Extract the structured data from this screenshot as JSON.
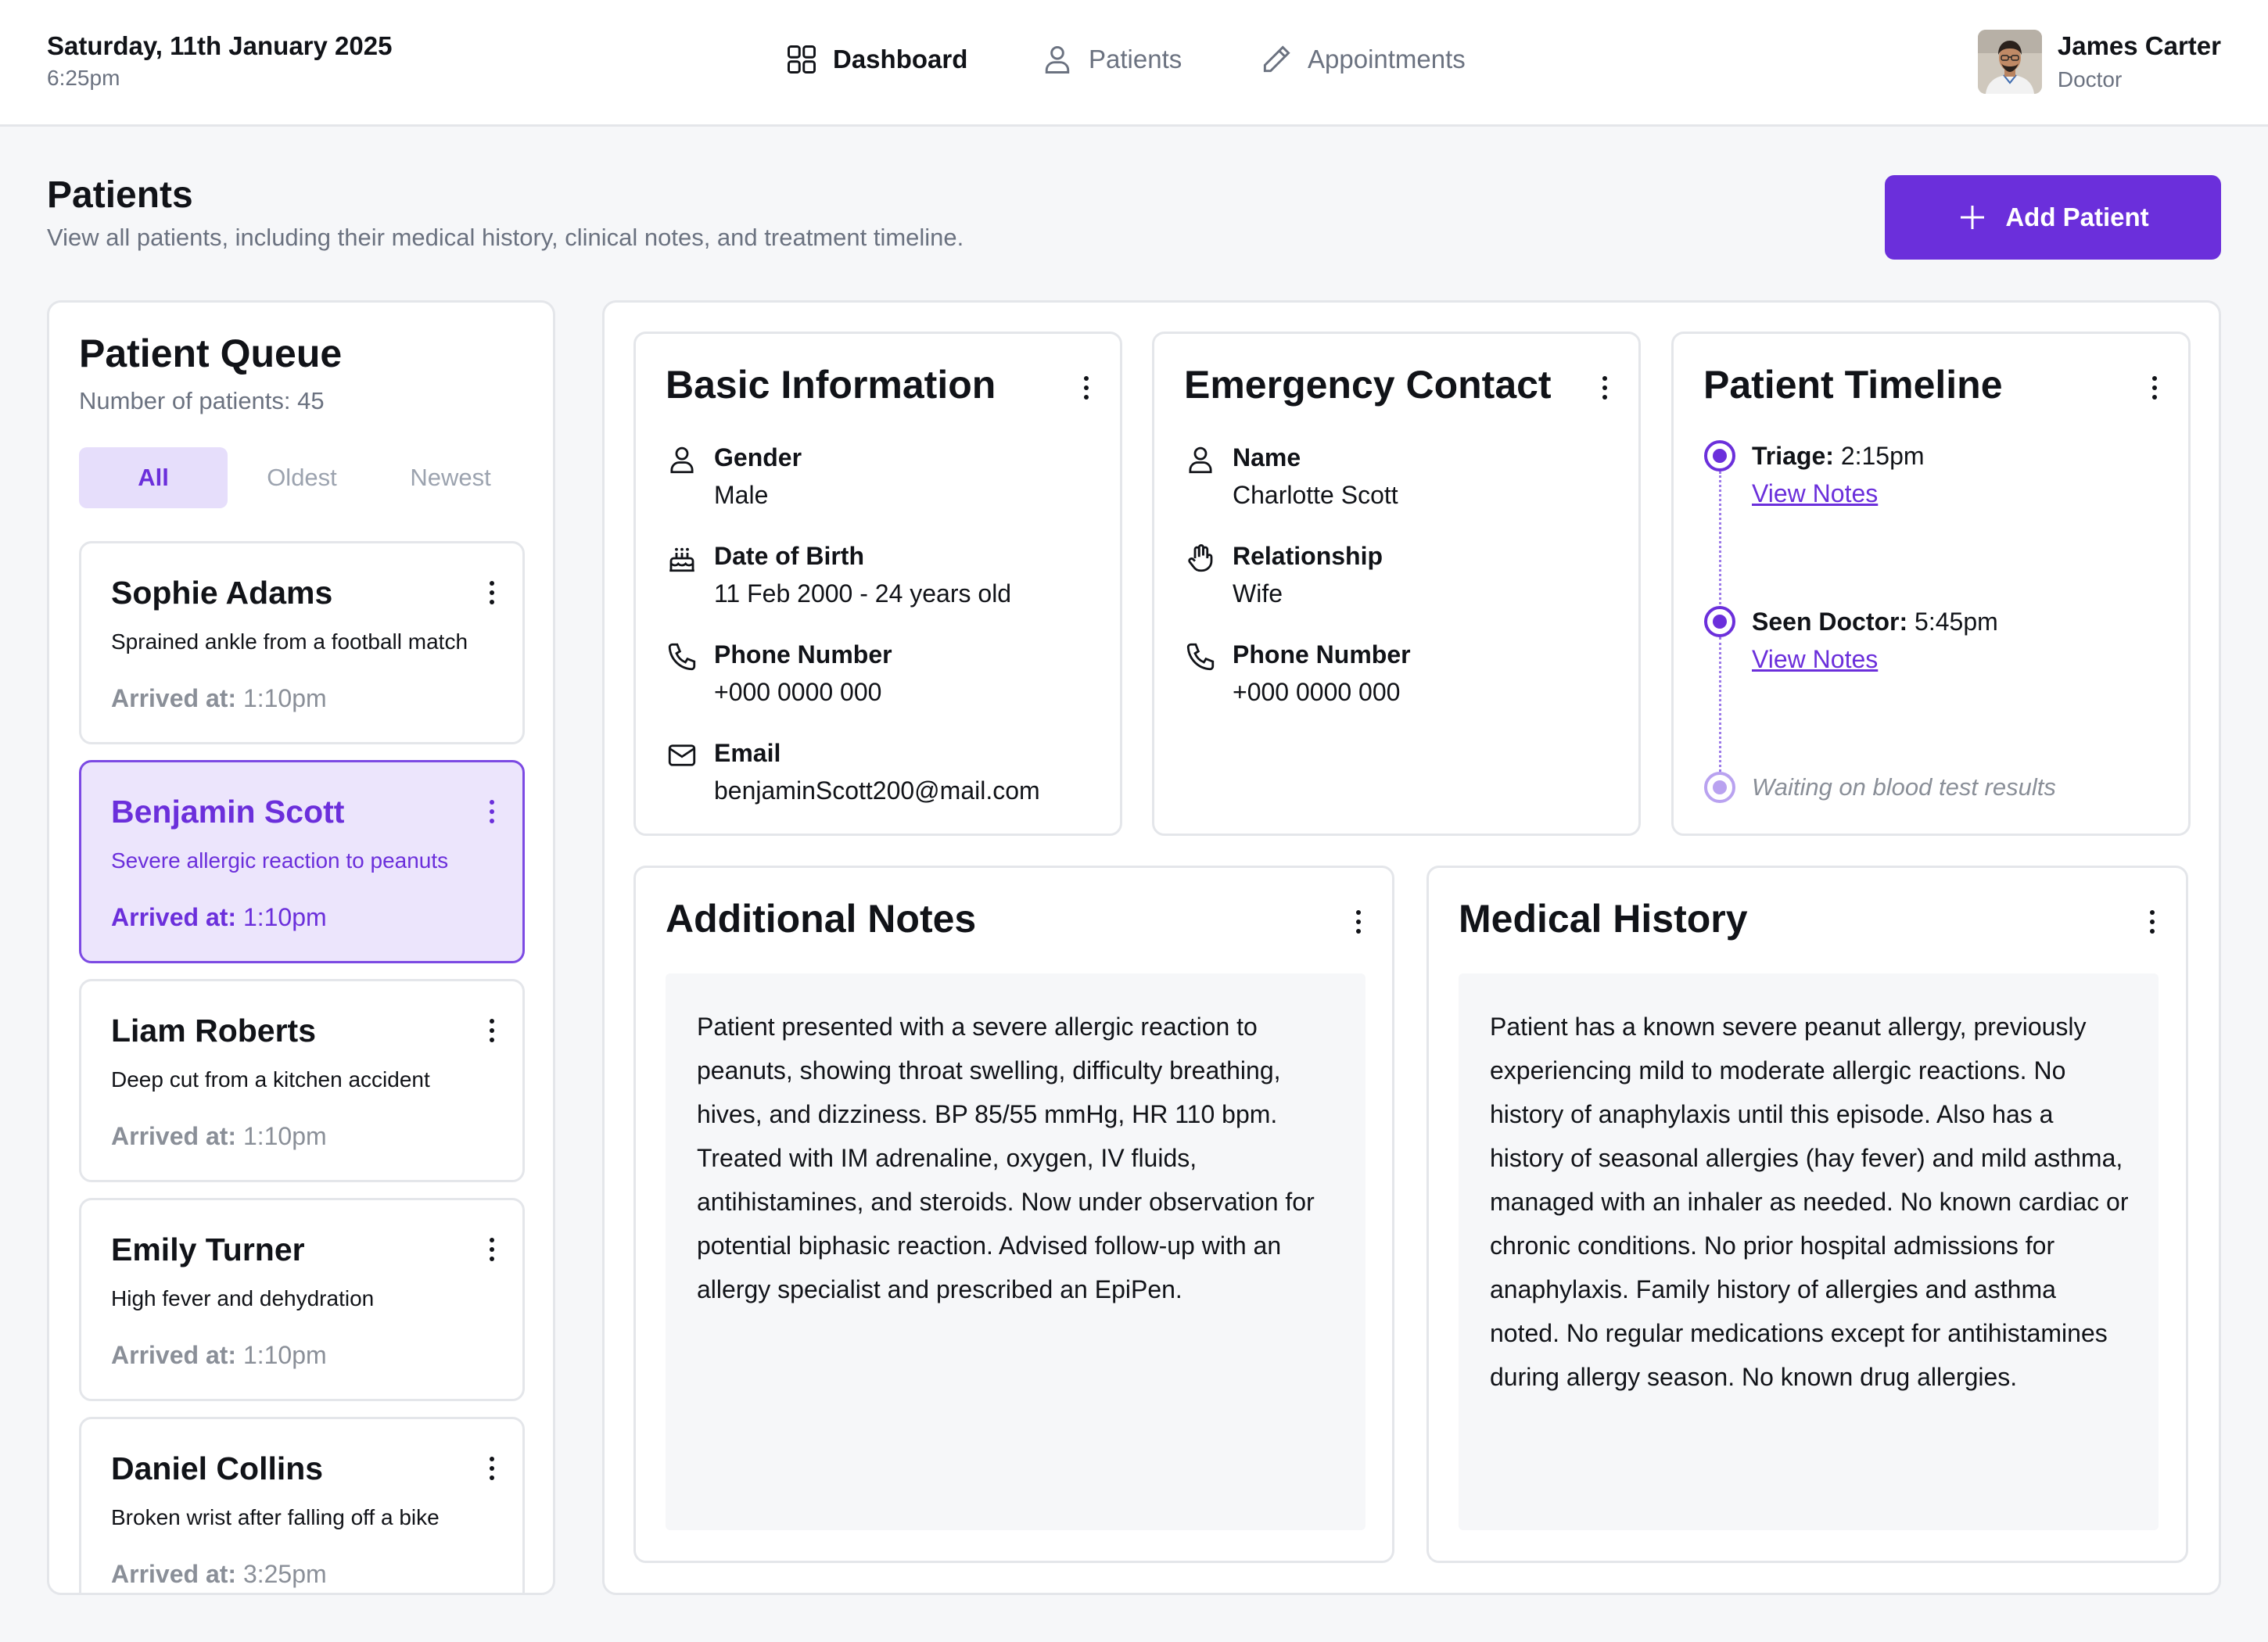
{
  "header": {
    "date": "Saturday, 11th January 2025",
    "time": "6:25pm",
    "nav": [
      {
        "label": "Dashboard",
        "icon": "grid-icon",
        "active": true
      },
      {
        "label": "Patients",
        "icon": "user-icon",
        "active": false
      },
      {
        "label": "Appointments",
        "icon": "pencil-icon",
        "active": false
      }
    ],
    "user": {
      "name": "James Carter",
      "role": "Doctor"
    }
  },
  "page": {
    "title": "Patients",
    "subtitle": "View all patients, including their medical history, clinical notes, and treatment timeline.",
    "add_button": "Add Patient"
  },
  "queue": {
    "title": "Patient Queue",
    "count_label": "Number of patients: 45",
    "filters": [
      "All",
      "Oldest",
      "Newest"
    ],
    "active_filter": "All",
    "arrived_label": "Arrived at:",
    "patients": [
      {
        "name": "Sophie Adams",
        "condition": "Sprained ankle from a football match",
        "arrived": "1:10pm",
        "selected": false
      },
      {
        "name": "Benjamin Scott",
        "condition": "Severe allergic reaction to peanuts",
        "arrived": "1:10pm",
        "selected": true
      },
      {
        "name": "Liam Roberts",
        "condition": "Deep cut from a kitchen accident",
        "arrived": "1:10pm",
        "selected": false
      },
      {
        "name": "Emily Turner",
        "condition": "High fever and dehydration",
        "arrived": "1:10pm",
        "selected": false
      },
      {
        "name": "Daniel Collins",
        "condition": "Broken wrist after falling off a bike",
        "arrived": "3:25pm",
        "selected": false
      }
    ]
  },
  "basic_info": {
    "title": "Basic Information",
    "gender_label": "Gender",
    "gender": "Male",
    "dob_label": "Date of Birth",
    "dob": "11 Feb 2000 - 24 years old",
    "phone_label": "Phone Number",
    "phone": "+000 0000 000",
    "email_label": "Email",
    "email": "benjaminScott200@mail.com"
  },
  "emergency_contact": {
    "title": "Emergency Contact",
    "name_label": "Name",
    "name": "Charlotte Scott",
    "relationship_label": "Relationship",
    "relationship": "Wife",
    "phone_label": "Phone Number",
    "phone": "+000 0000 000"
  },
  "timeline": {
    "title": "Patient Timeline",
    "events": [
      {
        "label": "Triage:",
        "time": "2:15pm",
        "link": "View Notes"
      },
      {
        "label": "Seen Doctor:",
        "time": "5:45pm",
        "link": "View Notes"
      }
    ],
    "pending": "Waiting on blood test results",
    "accent": "#6b2fdb"
  },
  "additional_notes": {
    "title": "Additional Notes",
    "text": "Patient presented with a severe allergic reaction to peanuts, showing throat swelling, difficulty breathing, hives, and dizziness. BP 85/55 mmHg, HR 110 bpm. Treated with IM adrenaline, oxygen, IV fluids, antihistamines, and steroids. Now under observation for potential biphasic reaction. Advised follow-up with an allergy specialist and prescribed an EpiPen."
  },
  "medical_history": {
    "title": "Medical History",
    "text": "Patient has a known severe peanut allergy, previously experiencing mild to moderate allergic reactions. No history of anaphylaxis until this episode. Also has a history of seasonal allergies (hay fever) and mild asthma, managed with an inhaler as needed. No known cardiac or chronic conditions. No prior hospital admissions for anaphylaxis. Family history of allergies and asthma noted. No regular medications except for antihistamines during allergy season. No known drug allergies."
  },
  "colors": {
    "accent": "#6b2fdb",
    "selected_bg": "#ece5fc",
    "page_bg": "#f6f7f9"
  }
}
